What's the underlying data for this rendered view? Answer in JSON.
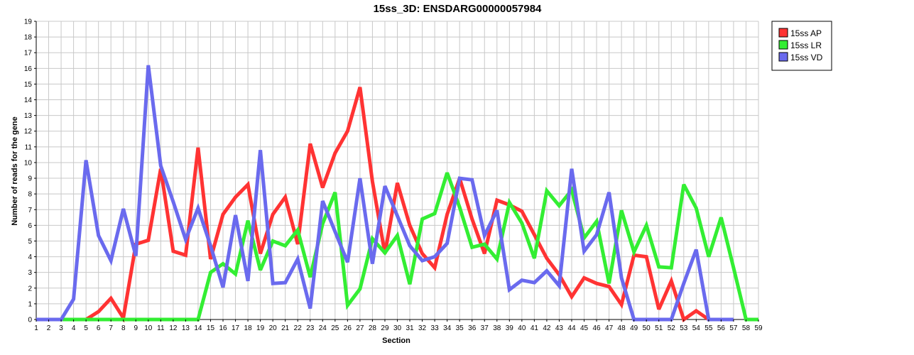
{
  "chart_data": {
    "type": "line",
    "title": "15ss_3D: ENSDARG00000057984",
    "xlabel": "Section",
    "ylabel": "Number of reads for the gene",
    "x": [
      1,
      2,
      3,
      4,
      5,
      6,
      7,
      8,
      9,
      10,
      11,
      12,
      13,
      14,
      15,
      16,
      17,
      18,
      19,
      20,
      21,
      22,
      23,
      24,
      25,
      26,
      27,
      28,
      29,
      30,
      31,
      32,
      33,
      34,
      35,
      36,
      37,
      38,
      39,
      40,
      41,
      42,
      43,
      44,
      45,
      46,
      47,
      48,
      49,
      50,
      51,
      52,
      53,
      54,
      55,
      56,
      57,
      58,
      59
    ],
    "xlim": [
      1,
      59
    ],
    "ylim": [
      0,
      19
    ],
    "yticks": [
      0,
      1,
      2,
      3,
      4,
      5,
      6,
      7,
      8,
      9,
      10,
      11,
      12,
      13,
      14,
      15,
      16,
      17,
      18,
      19
    ],
    "grid": true,
    "legend_position": "top-right",
    "series": [
      {
        "name": "15ss AP",
        "color": "#ff3333",
        "x": [
          1,
          2,
          3,
          4,
          5,
          6,
          7,
          8,
          9,
          10,
          11,
          12,
          13,
          14,
          15,
          16,
          17,
          18,
          19,
          20,
          21,
          22,
          23,
          24,
          25,
          26,
          27,
          28,
          29,
          30,
          31,
          32,
          33,
          34,
          35,
          36,
          37,
          38,
          39,
          40,
          41,
          42,
          43,
          44,
          45,
          46,
          47,
          48,
          49,
          50,
          51,
          52,
          53,
          54,
          55
        ],
        "values": [
          0,
          0,
          0,
          0,
          0,
          0.5,
          1.35,
          0.1,
          4.8,
          5.05,
          9.6,
          4.35,
          4.1,
          10.95,
          3.85,
          6.7,
          7.8,
          8.6,
          4.2,
          6.7,
          7.8,
          4.8,
          11.2,
          8.4,
          10.6,
          12,
          14.8,
          8.8,
          4.2,
          8.7,
          6,
          4.2,
          3.3,
          6.7,
          9,
          6.4,
          4.2,
          7.6,
          7.3,
          6.9,
          5.4,
          3.9,
          2.85,
          1.45,
          2.65,
          2.3,
          2.1,
          0.95,
          4.1,
          4,
          0.65,
          2.45,
          0,
          0.55,
          0
        ]
      },
      {
        "name": "15ss LR",
        "color": "#33ee33",
        "x": [
          1,
          2,
          3,
          4,
          5,
          6,
          7,
          8,
          9,
          10,
          11,
          12,
          13,
          14,
          15,
          16,
          17,
          18,
          19,
          20,
          21,
          22,
          23,
          24,
          25,
          26,
          27,
          28,
          29,
          30,
          31,
          32,
          33,
          34,
          35,
          36,
          37,
          38,
          39,
          40,
          41,
          42,
          43,
          44,
          45,
          46,
          47,
          48,
          49,
          50,
          51,
          52,
          53,
          54,
          55,
          56,
          57,
          58,
          59
        ],
        "values": [
          0,
          0,
          0,
          0,
          0,
          0,
          0,
          0,
          0,
          0,
          0,
          0,
          0,
          0,
          3,
          3.55,
          2.9,
          6.3,
          3.15,
          5,
          4.7,
          5.7,
          2.7,
          6.1,
          8.1,
          0.9,
          1.95,
          5.15,
          4.25,
          5.35,
          2.25,
          6.4,
          6.75,
          9.35,
          7.15,
          4.6,
          4.8,
          3.85,
          7.45,
          6.15,
          3.9,
          8.2,
          7.25,
          8.25,
          5.2,
          6.25,
          2.3,
          6.95,
          4.3,
          6,
          3.35,
          3.3,
          8.6,
          7.1,
          4,
          6.5,
          3.3,
          0,
          0
        ]
      },
      {
        "name": "15ss VD",
        "color": "#6a6aee",
        "x": [
          1,
          2,
          3,
          4,
          5,
          6,
          7,
          8,
          9,
          10,
          11,
          12,
          13,
          14,
          15,
          16,
          17,
          18,
          19,
          20,
          21,
          22,
          23,
          24,
          25,
          26,
          27,
          28,
          29,
          30,
          31,
          32,
          33,
          34,
          35,
          36,
          37,
          38,
          39,
          40,
          41,
          42,
          43,
          44,
          45,
          46,
          47,
          48,
          49,
          50,
          51,
          52,
          53,
          54,
          55,
          56,
          57
        ],
        "values": [
          0,
          0,
          0,
          1.3,
          10.15,
          5.35,
          3.75,
          7.05,
          4.05,
          16.2,
          9.8,
          7.5,
          5.1,
          7.1,
          4.7,
          2.05,
          6.65,
          2.45,
          10.8,
          2.3,
          2.35,
          3.85,
          0.7,
          7.55,
          5.6,
          3.65,
          9,
          3.55,
          8.5,
          6.6,
          4.7,
          3.75,
          4,
          4.85,
          9,
          8.9,
          5.35,
          6.95,
          1.9,
          2.5,
          2.35,
          3.1,
          2.15,
          9.6,
          4.35,
          5.4,
          8.1,
          2.65,
          0,
          0,
          0,
          0,
          2.3,
          4.45,
          0,
          0,
          0
        ]
      }
    ]
  }
}
